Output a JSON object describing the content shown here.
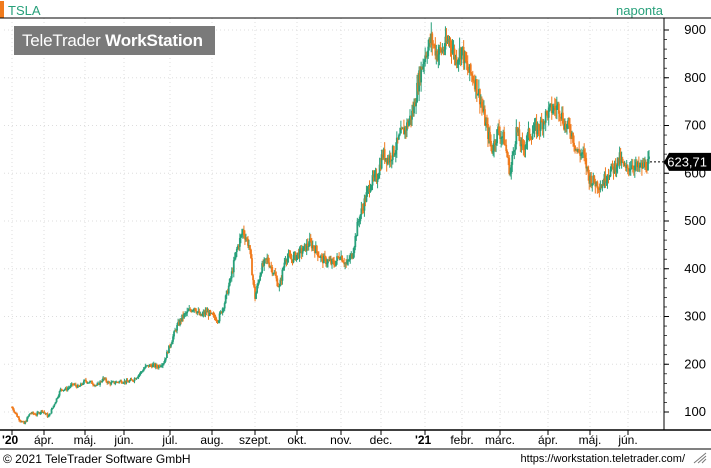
{
  "header": {
    "ticker": "TSLA",
    "period": "naponta"
  },
  "logo": {
    "brand_light": "TeleTrader ",
    "brand_bold": "WorkStation"
  },
  "footer": {
    "copyright": "© 2021 TeleTrader Software GmbH",
    "url": "https://workstation.teletrader.com/"
  },
  "last_price_label": "623,71",
  "colors": {
    "up": "#27a07a",
    "down": "#f07a1c",
    "grid": "#dddddd",
    "axis": "#000000",
    "price_tag": "#000000"
  },
  "chart_data": {
    "type": "candlestick",
    "symbol": "TSLA",
    "interval": "naponta",
    "y_ticks": [
      100,
      200,
      300,
      400,
      500,
      600,
      700,
      800,
      900
    ],
    "ylim": [
      75,
      930
    ],
    "x_ticks": [
      "'20",
      "ápr.",
      "máj.",
      "jún.",
      "júl.",
      "aug.",
      "szept.",
      "okt.",
      "nov.",
      "dec.",
      "'21",
      "febr.",
      "márc.",
      "ápr.",
      "máj.",
      "jún."
    ],
    "last_value": 623.71,
    "series": [
      {
        "values": [
          [
            2020.21,
            110
          ],
          [
            2020.22,
            88
          ],
          [
            2020.23,
            75
          ],
          [
            2020.24,
            98
          ],
          [
            2020.25,
            95
          ],
          [
            2020.26,
            103
          ],
          [
            2020.27,
            90
          ],
          [
            2020.28,
            118
          ],
          [
            2020.29,
            147
          ],
          [
            2020.3,
            148
          ],
          [
            2020.31,
            158
          ],
          [
            2020.32,
            152
          ],
          [
            2020.33,
            165
          ],
          [
            2020.34,
            162
          ],
          [
            2020.35,
            155
          ],
          [
            2020.36,
            170
          ],
          [
            2020.37,
            160
          ],
          [
            2020.38,
            162
          ],
          [
            2020.39,
            165
          ],
          [
            2020.4,
            163
          ],
          [
            2020.41,
            168
          ],
          [
            2020.42,
            180
          ],
          [
            2020.43,
            195
          ],
          [
            2020.44,
            198
          ],
          [
            2020.45,
            195
          ],
          [
            2020.46,
            205
          ],
          [
            2020.47,
            240
          ],
          [
            2020.48,
            275
          ],
          [
            2020.49,
            298
          ],
          [
            2020.5,
            310
          ],
          [
            2020.51,
            320
          ],
          [
            2020.52,
            300
          ],
          [
            2020.53,
            310
          ],
          [
            2020.54,
            300
          ],
          [
            2020.55,
            295
          ],
          [
            2020.56,
            330
          ],
          [
            2020.57,
            380
          ],
          [
            2020.58,
            440
          ],
          [
            2020.59,
            480
          ],
          [
            2020.6,
            450
          ],
          [
            2020.61,
            340
          ],
          [
            2020.62,
            400
          ],
          [
            2020.63,
            420
          ],
          [
            2020.64,
            395
          ],
          [
            2020.65,
            360
          ],
          [
            2020.66,
            425
          ],
          [
            2020.67,
            420
          ],
          [
            2020.68,
            430
          ],
          [
            2020.69,
            440
          ],
          [
            2020.7,
            455
          ],
          [
            2020.71,
            440
          ],
          [
            2020.72,
            420
          ],
          [
            2020.73,
            415
          ],
          [
            2020.74,
            410
          ],
          [
            2020.75,
            430
          ],
          [
            2020.76,
            408
          ],
          [
            2020.77,
            430
          ],
          [
            2020.78,
            500
          ],
          [
            2020.79,
            540
          ],
          [
            2020.8,
            580
          ],
          [
            2020.81,
            590
          ],
          [
            2020.82,
            640
          ],
          [
            2020.83,
            630
          ],
          [
            2020.84,
            650
          ],
          [
            2020.85,
            680
          ],
          [
            2020.86,
            700
          ],
          [
            2020.87,
            730
          ],
          [
            2020.88,
            800
          ],
          [
            2020.89,
            850
          ],
          [
            2020.9,
            880
          ],
          [
            2020.91,
            850
          ],
          [
            2020.92,
            860
          ],
          [
            2020.93,
            880
          ],
          [
            2020.94,
            840
          ],
          [
            2020.95,
            860
          ],
          [
            2020.96,
            815
          ],
          [
            2020.97,
            800
          ],
          [
            2020.98,
            760
          ],
          [
            2020.99,
            700
          ],
          [
            2021.0,
            650
          ],
          [
            2021.01,
            690
          ],
          [
            2021.02,
            670
          ],
          [
            2021.03,
            600
          ],
          [
            2021.04,
            690
          ],
          [
            2021.05,
            650
          ],
          [
            2021.06,
            680
          ],
          [
            2021.07,
            690
          ],
          [
            2021.08,
            700
          ],
          [
            2021.09,
            725
          ],
          [
            2021.1,
            735
          ],
          [
            2021.11,
            740
          ],
          [
            2021.12,
            700
          ],
          [
            2021.13,
            690
          ],
          [
            2021.14,
            645
          ],
          [
            2021.15,
            640
          ],
          [
            2021.16,
            590
          ],
          [
            2021.17,
            580
          ],
          [
            2021.18,
            575
          ],
          [
            2021.19,
            600
          ],
          [
            2021.2,
            610
          ],
          [
            2021.21,
            630
          ],
          [
            2021.22,
            605
          ],
          [
            2021.23,
            620
          ],
          [
            2021.24,
            610
          ],
          [
            2021.25,
            615
          ],
          [
            2021.26,
            623.71
          ]
        ]
      }
    ]
  }
}
